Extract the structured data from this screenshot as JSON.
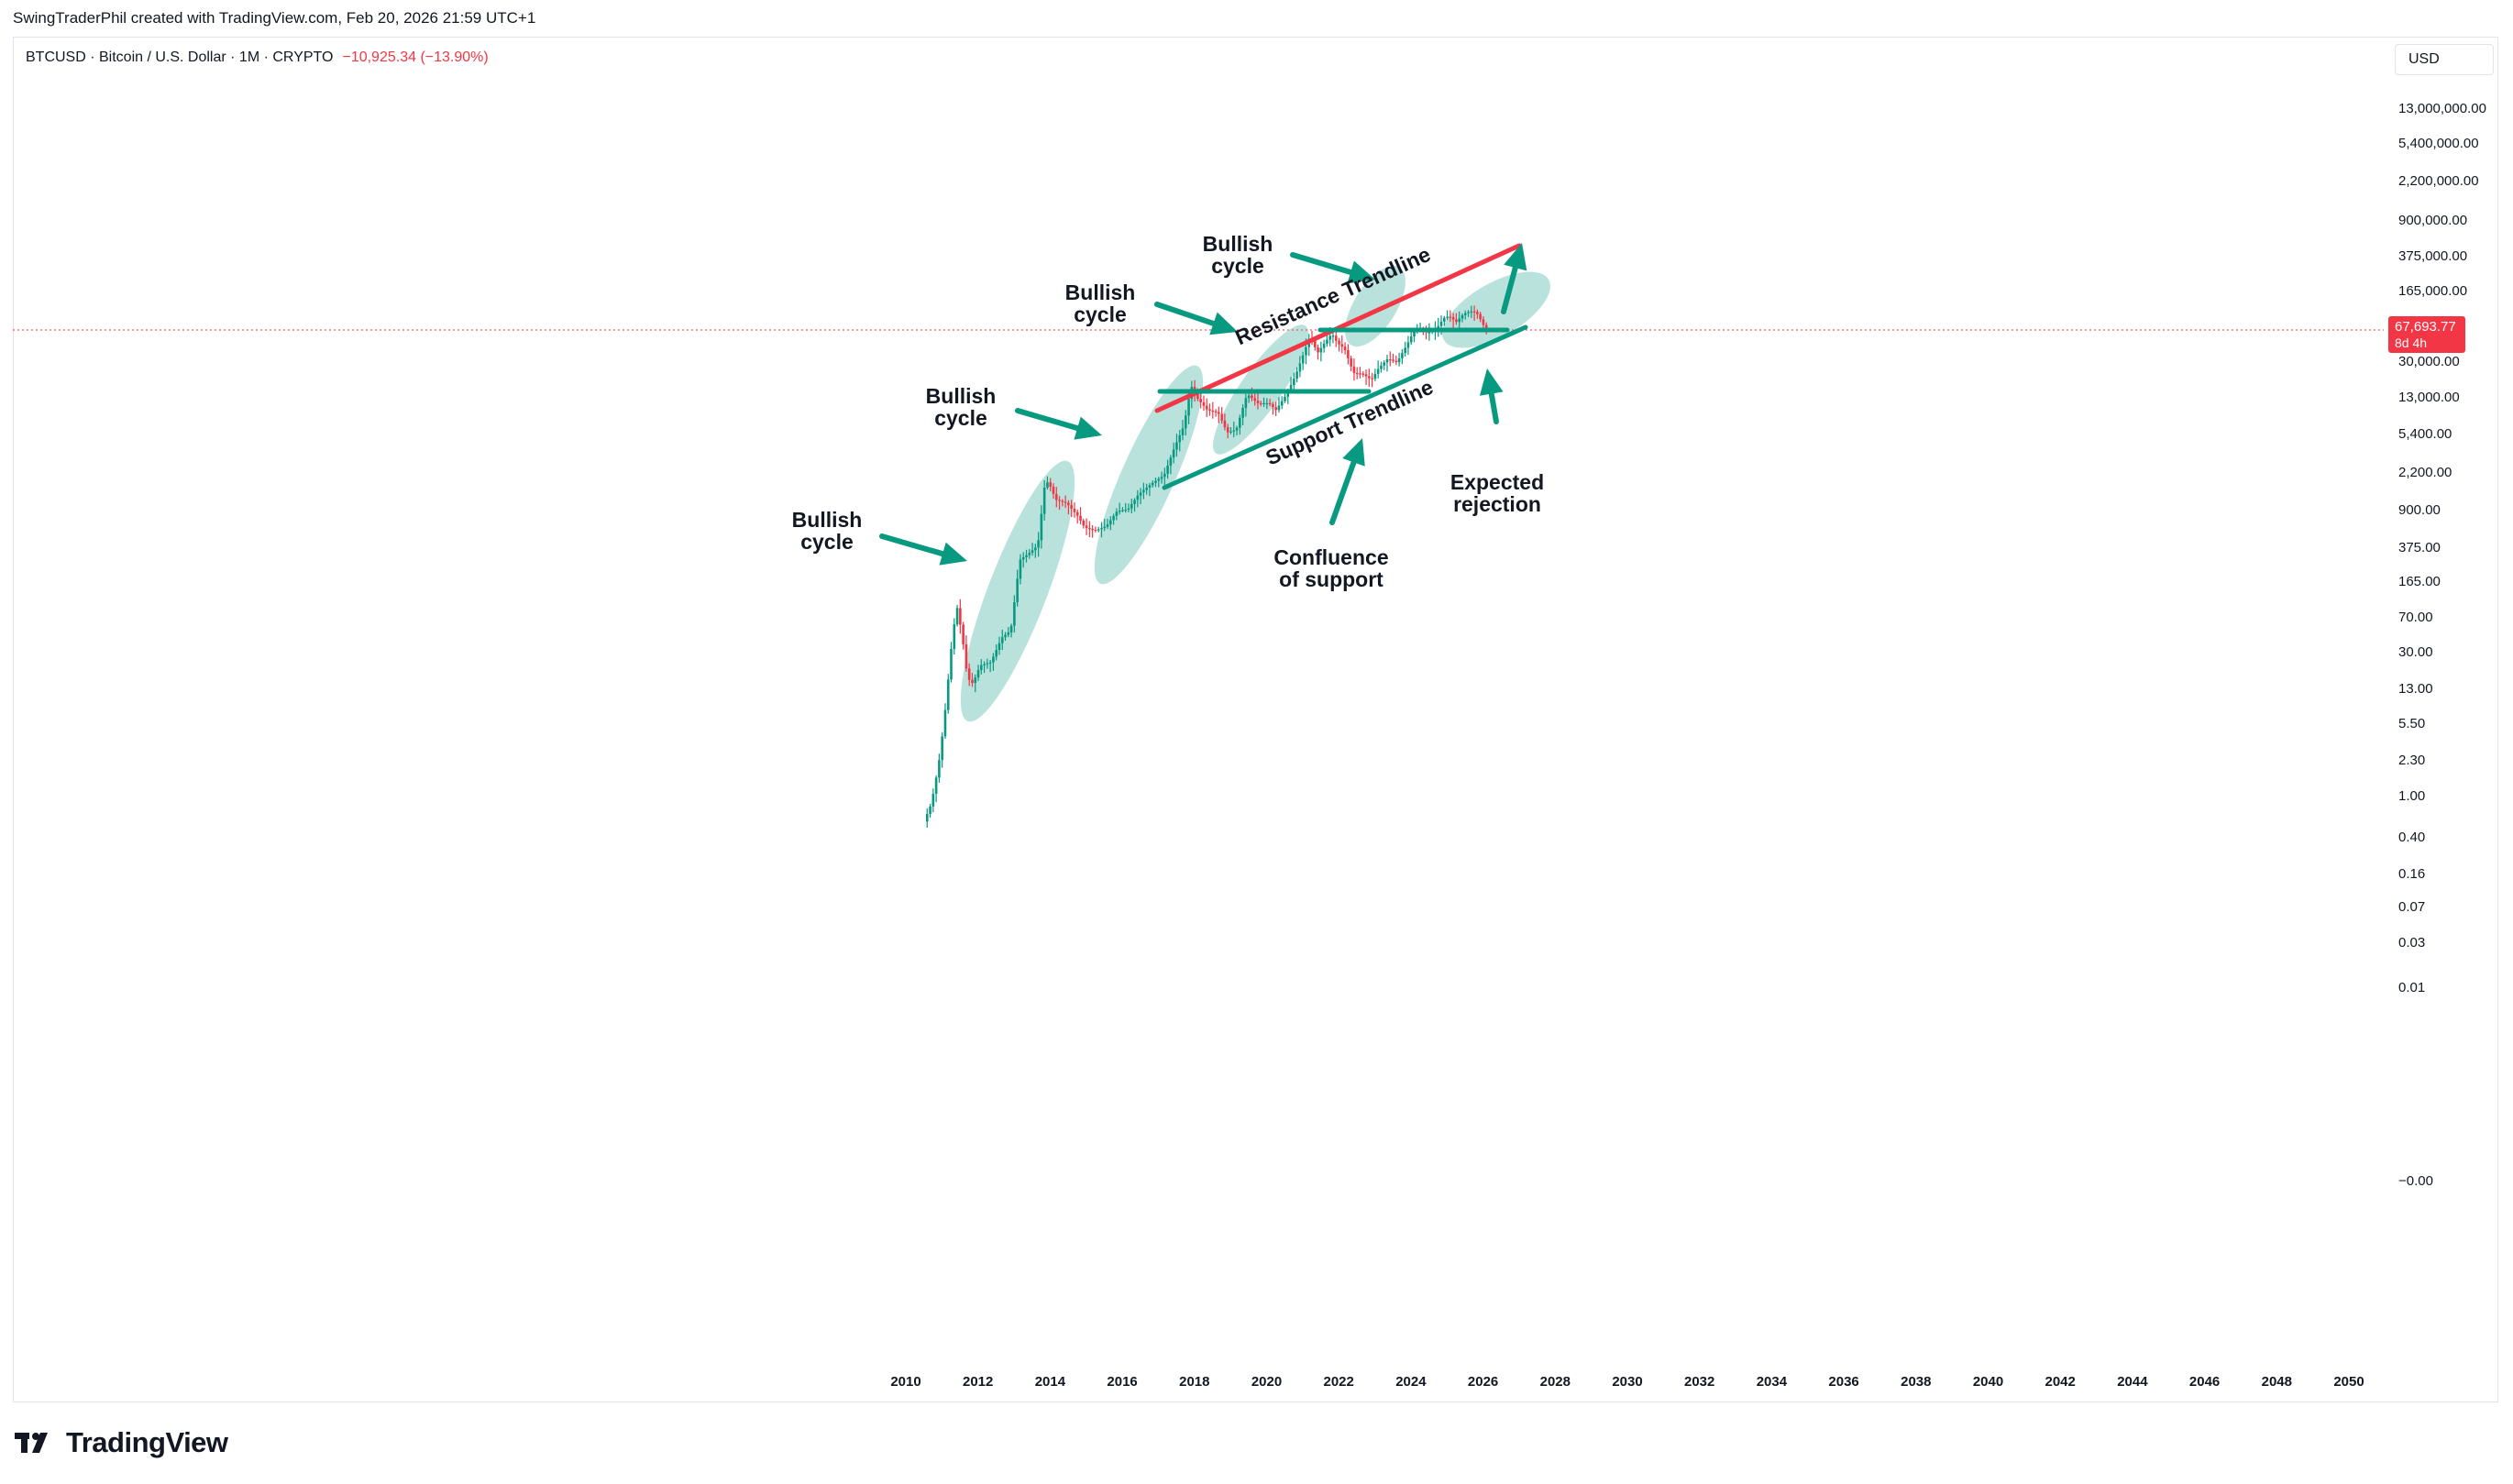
{
  "header": {
    "credit": "SwingTraderPhil created with TradingView.com, Feb 20, 2026 21:59 UTC+1"
  },
  "symbol": {
    "name": "BTCUSD · Bitcoin / U.S. Dollar · 1M · CRYPTO",
    "change": "−10,925.34 (−13.90%)"
  },
  "currency": "USD",
  "footer": {
    "brand": "TradingView"
  },
  "colors": {
    "up": "#089981",
    "down": "#f23645",
    "trend_support": "#089981",
    "trend_resistance": "#f23645",
    "cycle_fill": "#b3dfd8",
    "arrow": "#089981"
  },
  "chart_data": {
    "type": "candlestick",
    "symbol": "BTCUSD",
    "interval": "1M",
    "y_scale": "log",
    "last_price": "67,693.77",
    "countdown": "8d 4h",
    "y_ticks": [
      "13,000,000.00",
      "5,400,000.00",
      "2,200,000.00",
      "900,000.00",
      "375,000.00",
      "165,000.00",
      "67,693.77",
      "30,000.00",
      "13,000.00",
      "5,400.00",
      "2,200.00",
      "900.00",
      "375.00",
      "165.00",
      "70.00",
      "30.00",
      "13.00",
      "5.50",
      "2.30",
      "1.00",
      "0.40",
      "0.16",
      "0.07",
      "0.03",
      "0.01",
      "−0.00"
    ],
    "x_ticks": [
      "2010",
      "2012",
      "2014",
      "2016",
      "2018",
      "2020",
      "2022",
      "2024",
      "2026",
      "2028",
      "2030",
      "2032",
      "2034",
      "2036",
      "2038",
      "2040",
      "2042",
      "2044",
      "2046",
      "2048",
      "2050"
    ],
    "price_path": [
      [
        2010.55,
        0.06
      ],
      [
        2010.75,
        0.1
      ],
      [
        2010.95,
        0.3
      ],
      [
        2011.1,
        1.0
      ],
      [
        2011.3,
        8
      ],
      [
        2011.45,
        28
      ],
      [
        2011.6,
        12
      ],
      [
        2011.75,
        3.5
      ],
      [
        2011.9,
        3
      ],
      [
        2012.1,
        5
      ],
      [
        2012.4,
        5.5
      ],
      [
        2012.7,
        11
      ],
      [
        2012.95,
        13.5
      ],
      [
        2013.2,
        100
      ],
      [
        2013.45,
        120
      ],
      [
        2013.7,
        150
      ],
      [
        2013.9,
        900
      ],
      [
        2014.0,
        900
      ],
      [
        2014.2,
        550
      ],
      [
        2014.5,
        500
      ],
      [
        2014.8,
        350
      ],
      [
        2015.0,
        250
      ],
      [
        2015.3,
        230
      ],
      [
        2015.6,
        260
      ],
      [
        2015.9,
        400
      ],
      [
        2016.2,
        420
      ],
      [
        2016.5,
        650
      ],
      [
        2016.9,
        900
      ],
      [
        2017.2,
        1100
      ],
      [
        2017.5,
        2500
      ],
      [
        2017.75,
        4500
      ],
      [
        2017.95,
        14000
      ],
      [
        2018.1,
        10000
      ],
      [
        2018.4,
        7000
      ],
      [
        2018.7,
        6500
      ],
      [
        2018.95,
        3700
      ],
      [
        2019.2,
        4000
      ],
      [
        2019.5,
        11000
      ],
      [
        2019.8,
        8500
      ],
      [
        2020.1,
        8500
      ],
      [
        2020.3,
        7000
      ],
      [
        2020.6,
        11000
      ],
      [
        2020.85,
        19000
      ],
      [
        2021.05,
        33000
      ],
      [
        2021.25,
        58000
      ],
      [
        2021.45,
        35000
      ],
      [
        2021.65,
        47000
      ],
      [
        2021.85,
        61000
      ],
      [
        2022.0,
        47000
      ],
      [
        2022.2,
        40000
      ],
      [
        2022.45,
        20000
      ],
      [
        2022.7,
        19500
      ],
      [
        2022.95,
        16500
      ],
      [
        2023.15,
        23000
      ],
      [
        2023.4,
        30000
      ],
      [
        2023.65,
        27000
      ],
      [
        2023.9,
        42000
      ],
      [
        2024.1,
        62000
      ],
      [
        2024.25,
        71000
      ],
      [
        2024.5,
        62000
      ],
      [
        2024.75,
        70000
      ],
      [
        2024.95,
        95000
      ],
      [
        2025.1,
        100000
      ],
      [
        2025.3,
        85000
      ],
      [
        2025.5,
        107000
      ],
      [
        2025.7,
        115000
      ],
      [
        2025.85,
        112000
      ],
      [
        2025.95,
        95000
      ],
      [
        2026.05,
        78000
      ],
      [
        2026.13,
        67693.77
      ]
    ],
    "annotations": [
      {
        "text": [
          "Bullish",
          "cycle"
        ]
      },
      {
        "text": [
          "Bullish",
          "cycle"
        ]
      },
      {
        "text": [
          "Bullish",
          "cycle"
        ]
      },
      {
        "text": [
          "Bullish",
          "cycle"
        ]
      },
      {
        "text": [
          "Confluence",
          "of support"
        ]
      },
      {
        "text": [
          "Expected",
          "rejection"
        ]
      },
      {
        "text": [
          "Resistance Trendline"
        ]
      },
      {
        "text": [
          "Support Trendline"
        ]
      }
    ]
  }
}
